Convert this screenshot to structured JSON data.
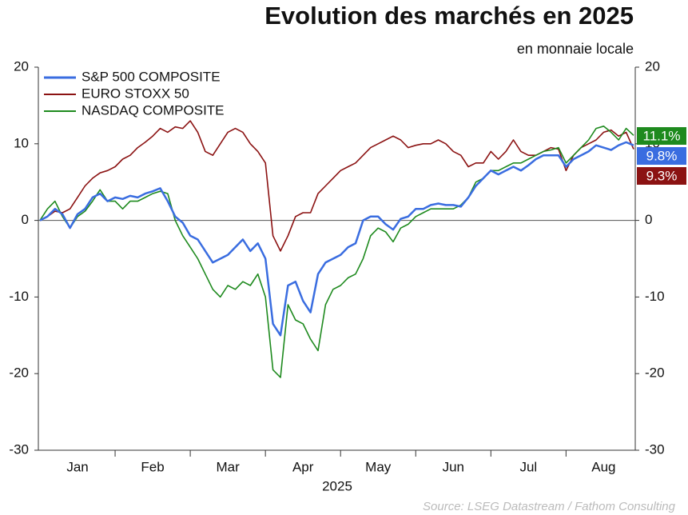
{
  "chart_data": {
    "type": "line",
    "title": "Evolution des marchés en 2025",
    "subtitle": "en monnaie locale",
    "xlabel": "2025",
    "source": "Source: LSEG Datastream / Fathom Consulting",
    "categories": [
      null,
      null,
      null,
      null,
      null,
      "Jan",
      null,
      null,
      null,
      null,
      null,
      null,
      null,
      null,
      null,
      "Feb",
      null,
      null,
      null,
      null,
      null,
      null,
      null,
      null,
      null,
      "Mar",
      null,
      null,
      null,
      null,
      null,
      null,
      null,
      null,
      null,
      "Apr",
      null,
      null,
      null,
      null,
      null,
      null,
      null,
      null,
      null,
      "May",
      null,
      null,
      null,
      null,
      null,
      null,
      null,
      null,
      null,
      "Jun",
      null,
      null,
      null,
      null,
      null,
      null,
      null,
      null,
      null,
      "Jul",
      null,
      null,
      null,
      null,
      null,
      null,
      null,
      null,
      null,
      "Aug",
      null,
      null,
      null,
      null
    ],
    "series": [
      {
        "name": "S&P 500 COMPOSITE",
        "color": "#3a6de0",
        "end_label": "9.8%",
        "values": [
          0,
          0.5,
          1.5,
          0.8,
          -1,
          0.8,
          1.5,
          3,
          3.5,
          2.5,
          3,
          2.8,
          3.2,
          3,
          3.5,
          3.8,
          4.2,
          2.5,
          0.5,
          -0.3,
          -2,
          -2.5,
          -4,
          -5.5,
          -5,
          -4.5,
          -3.5,
          -2.5,
          -4,
          -3,
          -5,
          -13.5,
          -15,
          -8.5,
          -8,
          -10.5,
          -12,
          -7,
          -5.5,
          -5,
          -4.5,
          -3.5,
          -3,
          0,
          0.5,
          0.5,
          -0.5,
          -1.2,
          0.2,
          0.5,
          1.5,
          1.5,
          2,
          2.2,
          2,
          2,
          1.8,
          3,
          4.5,
          5.5,
          6.5,
          6,
          6.5,
          7,
          6.5,
          7.2,
          8,
          8.5,
          8.5,
          8.5,
          7,
          8,
          8.5,
          9,
          9.8,
          9.5,
          9.2,
          9.8,
          10.2,
          9.8
        ]
      },
      {
        "name": "EURO STOXX 50",
        "color": "#8b1212",
        "end_label": "9.3%",
        "values": [
          0,
          0.5,
          1.2,
          1,
          1.5,
          3,
          4.5,
          5.5,
          6.2,
          6.5,
          7,
          8,
          8.5,
          9.5,
          10.2,
          11,
          12,
          11.5,
          12.2,
          12,
          13,
          11.5,
          9,
          8.5,
          10,
          11.5,
          12,
          11.5,
          10,
          9,
          7.5,
          -2,
          -4,
          -2,
          0.5,
          1,
          1,
          3.5,
          4.5,
          5.5,
          6.5,
          7,
          7.5,
          8.5,
          9.5,
          10,
          10.5,
          11,
          10.5,
          9.5,
          9.8,
          10,
          10,
          10.5,
          10,
          9,
          8.5,
          7,
          7.5,
          7.5,
          9,
          8,
          9,
          10.5,
          9,
          8.5,
          8.5,
          9,
          9.5,
          9.3,
          6.5,
          8.5,
          9.5,
          10,
          10.5,
          11.5,
          11.8,
          11,
          11.5,
          9.3
        ]
      },
      {
        "name": "NASDAQ COMPOSITE",
        "color": "#1e8a1e",
        "end_label": "11.1%",
        "values": [
          0,
          1.5,
          2.5,
          0.5,
          -1,
          0.5,
          1.2,
          2.5,
          4,
          2.5,
          2.5,
          1.5,
          2.5,
          2.5,
          3,
          3.5,
          3.8,
          3.5,
          0,
          -2,
          -3.5,
          -5,
          -7,
          -9,
          -10,
          -8.5,
          -9,
          -8,
          -8.5,
          -7,
          -10,
          -19.5,
          -20.5,
          -11,
          -13,
          -13.5,
          -15.5,
          -17,
          -11,
          -9,
          -8.5,
          -7.5,
          -7,
          -5,
          -2,
          -1,
          -1.5,
          -2.8,
          -1,
          -0.5,
          0.5,
          1,
          1.5,
          1.5,
          1.5,
          1.5,
          2,
          3,
          5,
          5.5,
          6.5,
          6.5,
          7,
          7.5,
          7.5,
          8,
          8.5,
          9,
          9.2,
          9.5,
          7.5,
          8.5,
          9.5,
          10.5,
          12,
          12.3,
          11.5,
          10.5,
          12,
          11.1
        ]
      }
    ],
    "ylim": [
      -30,
      20
    ],
    "yticks": [
      -30,
      -20,
      -10,
      0,
      10,
      20
    ],
    "y2lim": [
      -30,
      20
    ],
    "y2ticks": [
      -30,
      -20,
      -10,
      0,
      10,
      20
    ],
    "legend": "upper left"
  }
}
